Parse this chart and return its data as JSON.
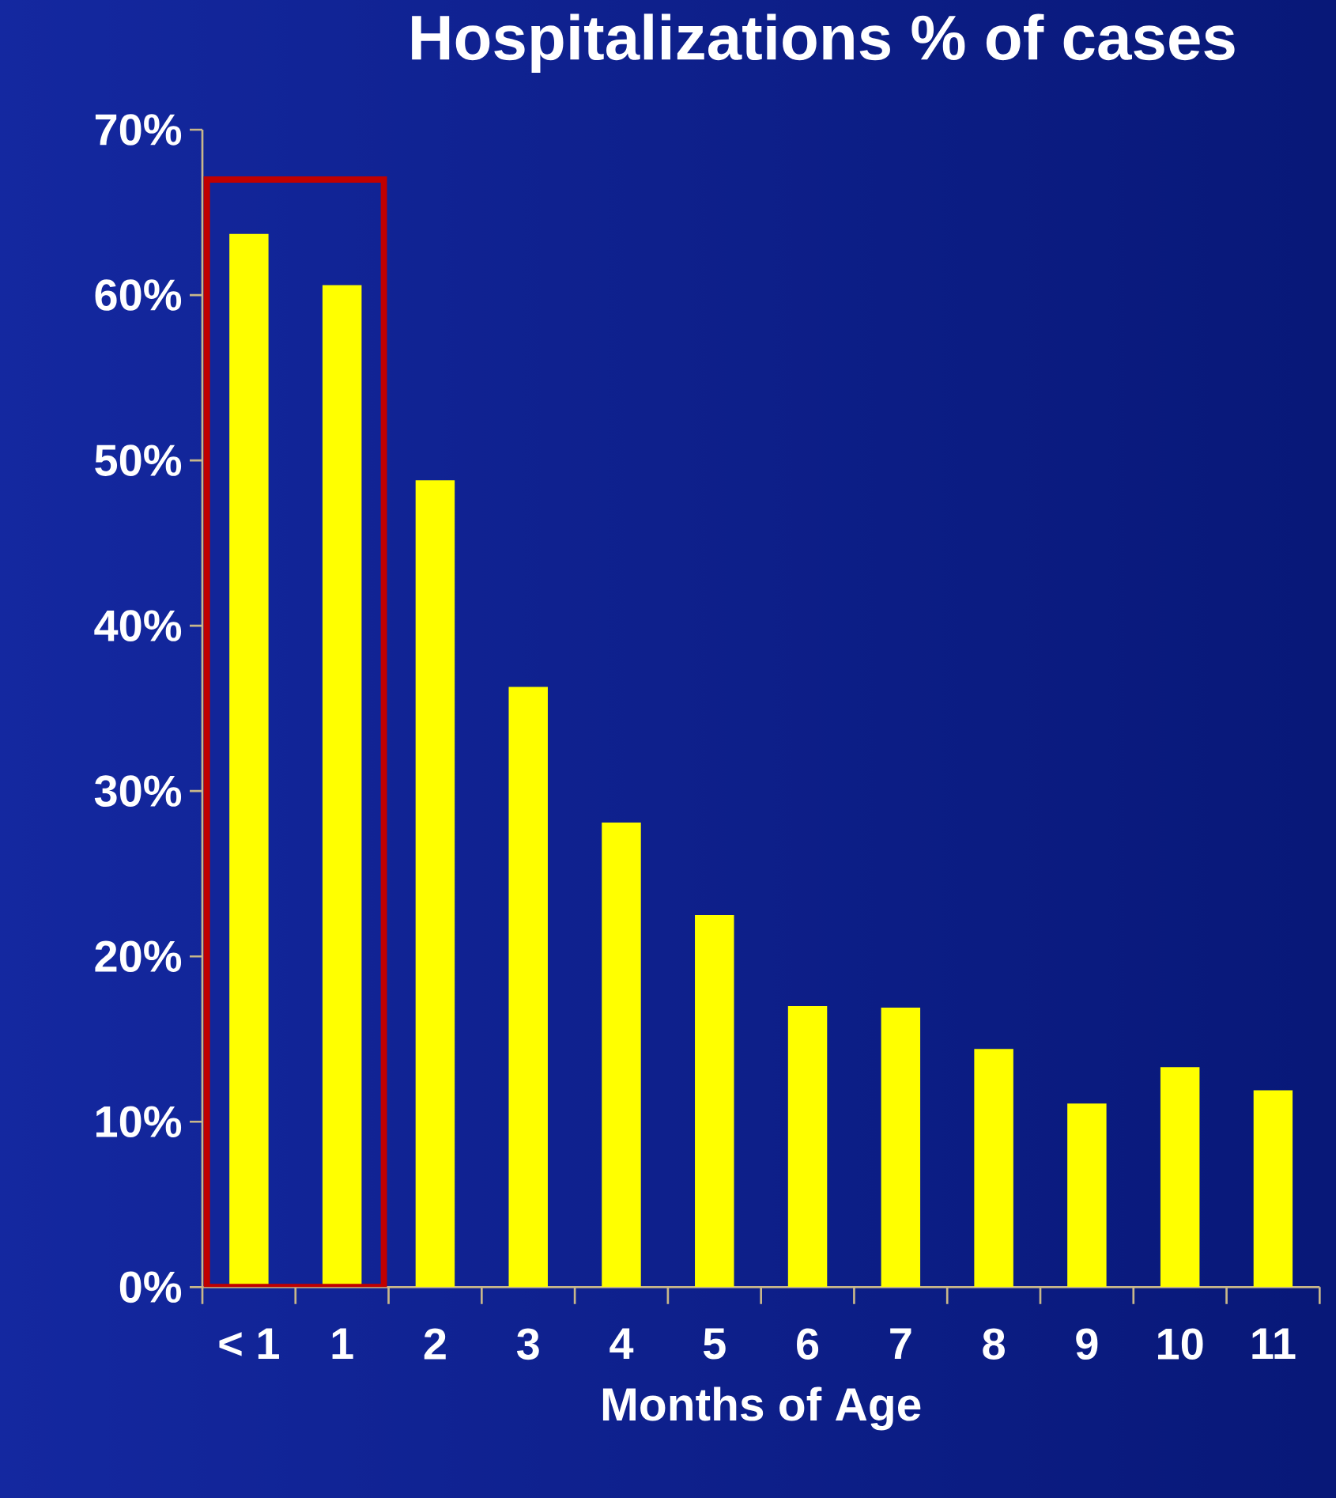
{
  "chart_data": {
    "type": "bar",
    "title": "Hospitalizations % of cases",
    "xlabel": "Months of Age",
    "categories": [
      "< 1",
      "1",
      "2",
      "3",
      "4",
      "5",
      "6",
      "7",
      "8",
      "9",
      "10",
      "11"
    ],
    "values": [
      63.7,
      60.6,
      48.8,
      36.3,
      28.1,
      22.5,
      17.0,
      16.9,
      14.4,
      11.1,
      13.3,
      11.9
    ],
    "color": "#ffff00",
    "ylim": [
      0,
      70
    ],
    "yticks": [
      {
        "value": 0,
        "label": "0%"
      },
      {
        "value": 10,
        "label": "10%"
      },
      {
        "value": 20,
        "label": "20%"
      },
      {
        "value": 30,
        "label": "30%"
      },
      {
        "value": 40,
        "label": "40%"
      },
      {
        "value": 50,
        "label": "50%"
      },
      {
        "value": 60,
        "label": "60%"
      },
      {
        "value": 70,
        "label": "70%"
      }
    ],
    "grid": false
  }
}
